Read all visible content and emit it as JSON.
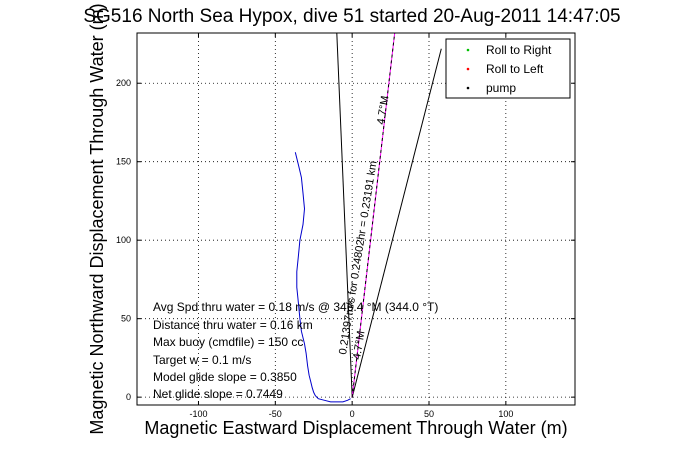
{
  "chart_data": {
    "type": "line",
    "title": "SG516 North Sea Hypox, dive 51 started 20-Aug-2011 14:47:05",
    "xlabel": "Magnetic Eastward Displacement Through Water (m)",
    "ylabel": "Magnetic Northward Displacement Through Water (m)",
    "xlim": [
      -140,
      145
    ],
    "ylim": [
      -5,
      232
    ],
    "xticks": [
      -100,
      -50,
      0,
      50,
      100
    ],
    "yticks": [
      0,
      50,
      100,
      150,
      200
    ],
    "grid": true,
    "legend_placement": "top-right",
    "legend": [
      {
        "label": "Roll to Right",
        "color": "#00c000",
        "marker": "dot"
      },
      {
        "label": "Roll to Left",
        "color": "#ff0000",
        "marker": "dot"
      },
      {
        "label": "pump",
        "color": "#000000",
        "marker": "dot"
      }
    ],
    "series": [
      {
        "color": "#0000cc",
        "x": [
          -37,
          -35,
          -33,
          -32,
          -31,
          -32,
          -34,
          -35,
          -36,
          -36,
          -35,
          -34,
          -33,
          -31,
          -30,
          -29,
          -28,
          -27,
          -26,
          -25,
          -24,
          -22,
          -18,
          -14,
          -10,
          -6,
          -3,
          -1
        ],
        "y": [
          156,
          148,
          140,
          130,
          120,
          110,
          100,
          90,
          80,
          70,
          60,
          50,
          42,
          34,
          28,
          20,
          14,
          10,
          6,
          3,
          1,
          -1,
          -2,
          -3,
          -3,
          -3,
          -2,
          -1
        ]
      },
      {
        "color": "#000000",
        "x": [
          0,
          -10
        ],
        "y": [
          0,
          232
        ]
      },
      {
        "color": "#000000",
        "x": [
          0,
          58
        ],
        "y": [
          0,
          222
        ]
      },
      {
        "color": "#ff00ff",
        "x": [
          0,
          9.3,
          18.5,
          27.7
        ],
        "y": [
          0,
          77.3,
          154.6,
          232
        ]
      },
      {
        "color": "#000000",
        "dashed": true,
        "x": [
          0,
          27.7
        ],
        "y": [
          0,
          232
        ]
      }
    ],
    "annotations": [
      {
        "text": "Avg Spd thru water =  0.18 m/s @ 346.4   °M (344.0 °T)"
      },
      {
        "text": "Distance thru water =  0.16 km"
      },
      {
        "text": "Max buoy (cmdfile) = 150 cc"
      },
      {
        "text": "Target w = 0.1 m/s"
      },
      {
        "text": "Model glide slope = 0.3850"
      },
      {
        "text": "Net glide slope = 0.7449"
      },
      {
        "text": "0.21397m/s for 0.24802hr = 0.23191 km"
      },
      {
        "text": "4.7°M"
      },
      {
        "text": "4.7°M"
      }
    ]
  }
}
